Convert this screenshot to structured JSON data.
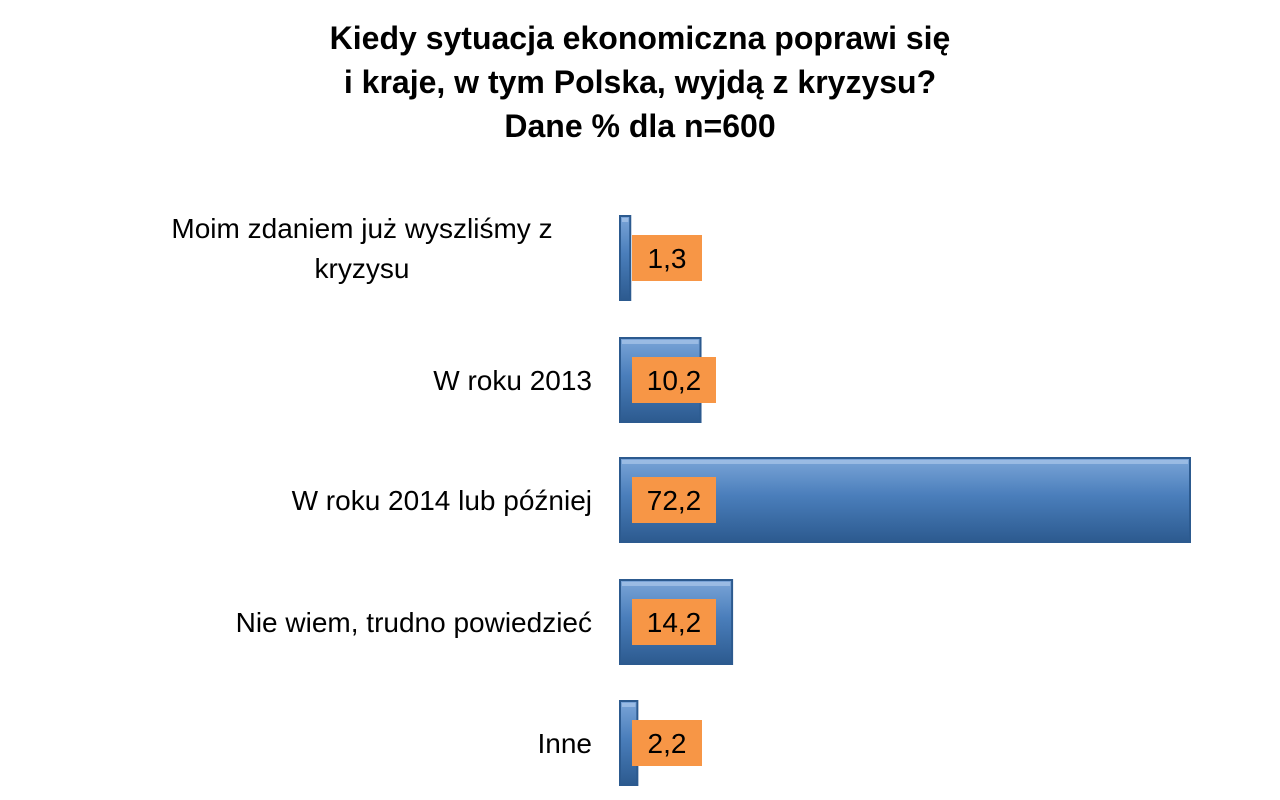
{
  "chart_data": {
    "type": "bar",
    "orientation": "horizontal",
    "title_lines": [
      "Kiedy sytuacja ekonomiczna poprawi się",
      "i kraje, w tym Polska, wyjdą z kryzysu?",
      "Dane % dla n=600"
    ],
    "categories": [
      [
        "Moim zdaniem już wyszliśmy z",
        "kryzysu"
      ],
      [
        "W roku 2013"
      ],
      [
        "W roku 2014 lub później"
      ],
      [
        "Nie wiem, trudno powiedzieć"
      ],
      [
        "Inne"
      ]
    ],
    "values": [
      1.3,
      10.2,
      72.2,
      14.2,
      2.2
    ],
    "value_labels": [
      "1,3",
      "10,2",
      "72,2",
      "14,2",
      "2,2"
    ],
    "xlim": [
      0,
      72.2
    ],
    "grid": false,
    "legend": "none",
    "colors": {
      "bar": "#4a7ebb",
      "bar_dark": "#2c5a8f",
      "bar_light": "#7ba5d8",
      "label_box": "#f79646"
    }
  }
}
